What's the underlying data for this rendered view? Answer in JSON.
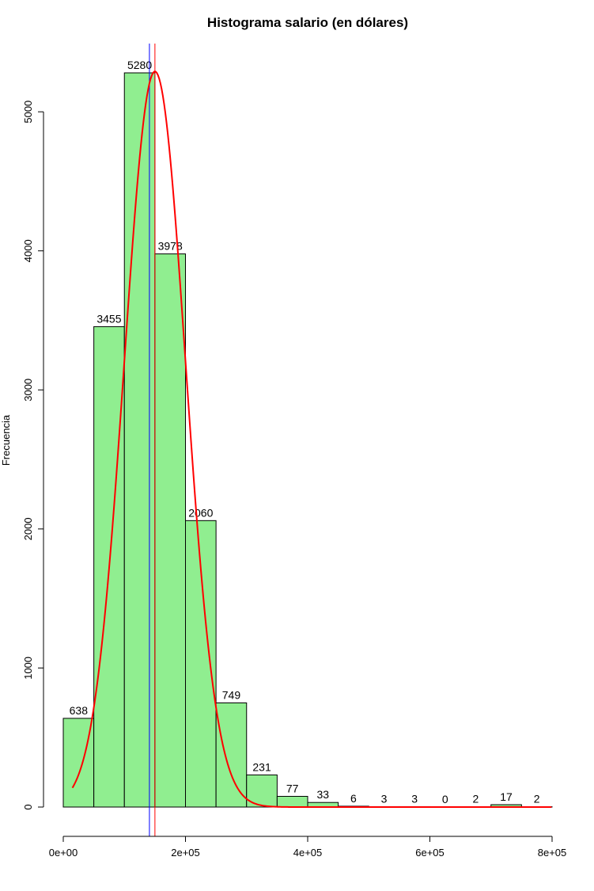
{
  "chart_data": {
    "type": "bar",
    "title": "Histograma salario (en dólares)",
    "xlabel": "",
    "ylabel": "Frecuencia",
    "bin_edges": [
      0,
      50000,
      100000,
      150000,
      200000,
      250000,
      300000,
      350000,
      400000,
      450000,
      500000,
      550000,
      600000,
      650000,
      700000,
      750000,
      800000
    ],
    "values": [
      638,
      3455,
      5280,
      3978,
      2060,
      749,
      231,
      77,
      33,
      6,
      3,
      3,
      0,
      2,
      17,
      2
    ],
    "data_labels": [
      "638",
      "3455",
      "5280",
      "3978",
      "2060",
      "749",
      "231",
      "77",
      "33",
      "6",
      "3",
      "3",
      "0",
      "2",
      "17",
      "2"
    ],
    "xlim": [
      0,
      800000
    ],
    "ylim": [
      0,
      5280
    ],
    "x_ticks": [
      0,
      200000,
      400000,
      600000,
      800000
    ],
    "x_tick_labels": [
      "0e+00",
      "2e+05",
      "4e+05",
      "6e+05",
      "8e+05"
    ],
    "y_ticks": [
      0,
      1000,
      2000,
      3000,
      4000,
      5000
    ],
    "y_tick_labels": [
      "0",
      "1000",
      "2000",
      "3000",
      "4000",
      "5000"
    ],
    "bar_color": "#90ee90",
    "bar_border_color": "#000000",
    "vertical_lines": [
      {
        "x": 141000,
        "color": "#0000ff"
      },
      {
        "x": 150000,
        "color": "#ff0000"
      }
    ],
    "density_curve": {
      "color": "#ff0000",
      "shape": "normal",
      "center": 150000,
      "peak": 5290,
      "sd": 50000,
      "x_range": [
        15000,
        800000
      ]
    },
    "grid": false,
    "legend": "none"
  }
}
